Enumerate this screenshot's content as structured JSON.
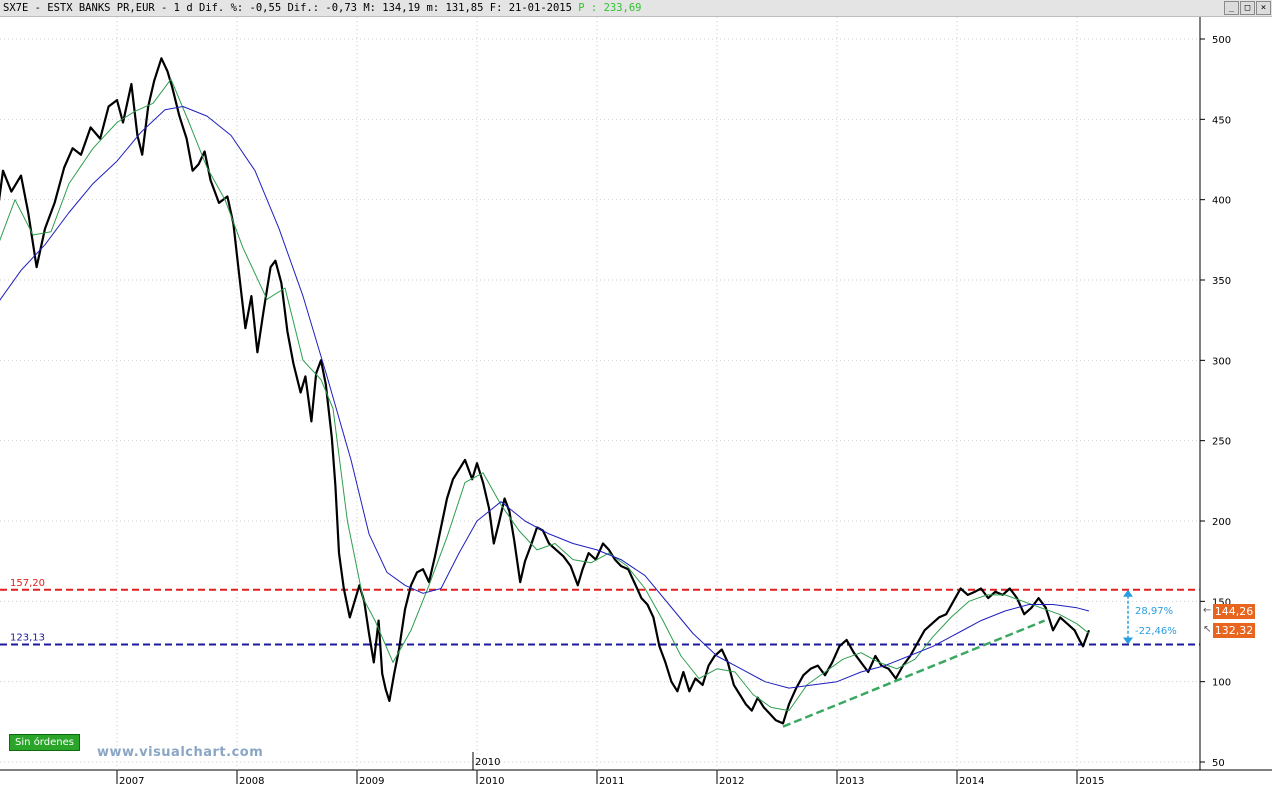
{
  "header": {
    "text": "SX7E - ESTX BANKS PR,EUR -  1 d Dif. %: -0,55 Dif.: -0,73 M: 134,19 m: 131,85 F: 21-01-2015",
    "p_label": "P : 233,69",
    "min_button": "_",
    "max_button": "□",
    "close_button": "×"
  },
  "badge": {
    "label": "Sin órdenes"
  },
  "watermark": "www.visualchart.com",
  "price_tags": {
    "upper": "144,26",
    "lower": "132,32"
  },
  "colors": {
    "price": "#000000",
    "ma_short": "#2e9e4e",
    "ma_long": "#1f1fbf",
    "resistance": "#e02020",
    "support": "#1a1a9e",
    "trendline": "#3aa860",
    "measure": "#2a9de0",
    "tag": "#e8651f"
  },
  "chart_data": {
    "type": "line",
    "yaxis": {
      "ticks": [
        50,
        100,
        150,
        200,
        250,
        300,
        350,
        400,
        450,
        500
      ],
      "ylim": [
        45,
        512
      ]
    },
    "xaxis": {
      "ticks": [
        "2007",
        "2008",
        "2009",
        "2010",
        "2011",
        "2012",
        "2013",
        "2014",
        "2015"
      ],
      "extra_label": "2010",
      "xlim": [
        2006.0,
        2015.9
      ]
    },
    "hlines": [
      {
        "name": "resistance",
        "value": 157.2,
        "label": "157,20"
      },
      {
        "name": "support",
        "value": 123.13,
        "label": "123,13"
      }
    ],
    "trendline": {
      "points": [
        [
          2012.55,
          72
        ],
        [
          2014.73,
          138
        ]
      ]
    },
    "measure": {
      "x": 2015.35,
      "from": 123.13,
      "to": 157.2,
      "labels": [
        "28,97%",
        "-22,46%"
      ]
    },
    "series": [
      {
        "name": "price",
        "points": [
          [
            2006.0,
            390
          ],
          [
            2006.05,
            418
          ],
          [
            2006.12,
            405
          ],
          [
            2006.2,
            415
          ],
          [
            2006.26,
            392
          ],
          [
            2006.33,
            358
          ],
          [
            2006.4,
            382
          ],
          [
            2006.48,
            398
          ],
          [
            2006.56,
            420
          ],
          [
            2006.63,
            432
          ],
          [
            2006.7,
            428
          ],
          [
            2006.78,
            445
          ],
          [
            2006.86,
            438
          ],
          [
            2006.93,
            458
          ],
          [
            2007.0,
            462
          ],
          [
            2007.05,
            448
          ],
          [
            2007.12,
            472
          ],
          [
            2007.17,
            440
          ],
          [
            2007.21,
            428
          ],
          [
            2007.26,
            458
          ],
          [
            2007.31,
            474
          ],
          [
            2007.37,
            488
          ],
          [
            2007.42,
            480
          ],
          [
            2007.46,
            470
          ],
          [
            2007.52,
            452
          ],
          [
            2007.58,
            438
          ],
          [
            2007.63,
            418
          ],
          [
            2007.68,
            422
          ],
          [
            2007.73,
            430
          ],
          [
            2007.78,
            412
          ],
          [
            2007.85,
            398
          ],
          [
            2007.92,
            402
          ],
          [
            2007.97,
            385
          ],
          [
            2008.02,
            352
          ],
          [
            2008.07,
            320
          ],
          [
            2008.12,
            340
          ],
          [
            2008.17,
            305
          ],
          [
            2008.22,
            330
          ],
          [
            2008.28,
            358
          ],
          [
            2008.32,
            362
          ],
          [
            2008.37,
            348
          ],
          [
            2008.42,
            318
          ],
          [
            2008.47,
            298
          ],
          [
            2008.53,
            280
          ],
          [
            2008.57,
            290
          ],
          [
            2008.62,
            262
          ],
          [
            2008.66,
            292
          ],
          [
            2008.7,
            300
          ],
          [
            2008.74,
            285
          ],
          [
            2008.79,
            252
          ],
          [
            2008.82,
            222
          ],
          [
            2008.85,
            180
          ],
          [
            2008.89,
            158
          ],
          [
            2008.94,
            140
          ],
          [
            2008.98,
            150
          ],
          [
            2009.02,
            160
          ],
          [
            2009.06,
            150
          ],
          [
            2009.1,
            130
          ],
          [
            2009.14,
            112
          ],
          [
            2009.18,
            138
          ],
          [
            2009.21,
            105
          ],
          [
            2009.24,
            95
          ],
          [
            2009.27,
            88
          ],
          [
            2009.31,
            105
          ],
          [
            2009.35,
            120
          ],
          [
            2009.4,
            145
          ],
          [
            2009.45,
            160
          ],
          [
            2009.5,
            168
          ],
          [
            2009.55,
            170
          ],
          [
            2009.6,
            162
          ],
          [
            2009.65,
            178
          ],
          [
            2009.7,
            196
          ],
          [
            2009.75,
            214
          ],
          [
            2009.8,
            226
          ],
          [
            2009.85,
            232
          ],
          [
            2009.9,
            238
          ],
          [
            2009.96,
            226
          ],
          [
            2010.0,
            236
          ],
          [
            2010.05,
            224
          ],
          [
            2010.1,
            208
          ],
          [
            2010.14,
            186
          ],
          [
            2010.18,
            198
          ],
          [
            2010.23,
            214
          ],
          [
            2010.27,
            206
          ],
          [
            2010.31,
            188
          ],
          [
            2010.36,
            162
          ],
          [
            2010.4,
            175
          ],
          [
            2010.45,
            185
          ],
          [
            2010.5,
            196
          ],
          [
            2010.55,
            194
          ],
          [
            2010.6,
            186
          ],
          [
            2010.66,
            182
          ],
          [
            2010.72,
            178
          ],
          [
            2010.78,
            172
          ],
          [
            2010.84,
            160
          ],
          [
            2010.88,
            170
          ],
          [
            2010.93,
            180
          ],
          [
            2010.99,
            176
          ],
          [
            2011.05,
            186
          ],
          [
            2011.1,
            182
          ],
          [
            2011.15,
            176
          ],
          [
            2011.2,
            172
          ],
          [
            2011.26,
            170
          ],
          [
            2011.31,
            162
          ],
          [
            2011.37,
            152
          ],
          [
            2011.42,
            148
          ],
          [
            2011.47,
            140
          ],
          [
            2011.52,
            122
          ],
          [
            2011.57,
            112
          ],
          [
            2011.62,
            100
          ],
          [
            2011.67,
            94
          ],
          [
            2011.72,
            106
          ],
          [
            2011.77,
            94
          ],
          [
            2011.82,
            102
          ],
          [
            2011.88,
            98
          ],
          [
            2011.93,
            110
          ],
          [
            2011.98,
            116
          ],
          [
            2012.04,
            120
          ],
          [
            2012.09,
            112
          ],
          [
            2012.14,
            98
          ],
          [
            2012.19,
            92
          ],
          [
            2012.24,
            86
          ],
          [
            2012.29,
            82
          ],
          [
            2012.34,
            90
          ],
          [
            2012.39,
            84
          ],
          [
            2012.44,
            80
          ],
          [
            2012.49,
            76
          ],
          [
            2012.55,
            74
          ],
          [
            2012.6,
            86
          ],
          [
            2012.66,
            96
          ],
          [
            2012.72,
            104
          ],
          [
            2012.78,
            108
          ],
          [
            2012.84,
            110
          ],
          [
            2012.9,
            104
          ],
          [
            2012.96,
            112
          ],
          [
            2013.02,
            122
          ],
          [
            2013.08,
            126
          ],
          [
            2013.14,
            118
          ],
          [
            2013.2,
            112
          ],
          [
            2013.26,
            106
          ],
          [
            2013.32,
            116
          ],
          [
            2013.37,
            110
          ],
          [
            2013.43,
            108
          ],
          [
            2013.49,
            102
          ],
          [
            2013.55,
            110
          ],
          [
            2013.61,
            116
          ],
          [
            2013.67,
            124
          ],
          [
            2013.73,
            132
          ],
          [
            2013.79,
            136
          ],
          [
            2013.85,
            140
          ],
          [
            2013.91,
            142
          ],
          [
            2013.97,
            150
          ],
          [
            2014.03,
            158
          ],
          [
            2014.09,
            154
          ],
          [
            2014.15,
            156
          ],
          [
            2014.2,
            158
          ],
          [
            2014.26,
            152
          ],
          [
            2014.32,
            156
          ],
          [
            2014.38,
            154
          ],
          [
            2014.44,
            158
          ],
          [
            2014.5,
            152
          ],
          [
            2014.56,
            142
          ],
          [
            2014.62,
            146
          ],
          [
            2014.68,
            152
          ],
          [
            2014.74,
            146
          ],
          [
            2014.8,
            132
          ],
          [
            2014.86,
            140
          ],
          [
            2014.92,
            136
          ],
          [
            2014.98,
            132
          ],
          [
            2015.02,
            126
          ],
          [
            2015.05,
            122
          ],
          [
            2015.08,
            128
          ],
          [
            2015.1,
            132
          ]
        ]
      },
      {
        "name": "ma_short",
        "points": [
          [
            2006.0,
            370
          ],
          [
            2006.15,
            400
          ],
          [
            2006.3,
            378
          ],
          [
            2006.45,
            380
          ],
          [
            2006.6,
            410
          ],
          [
            2006.8,
            432
          ],
          [
            2007.0,
            448
          ],
          [
            2007.15,
            455
          ],
          [
            2007.3,
            460
          ],
          [
            2007.45,
            475
          ],
          [
            2007.6,
            448
          ],
          [
            2007.75,
            420
          ],
          [
            2007.9,
            400
          ],
          [
            2008.05,
            370
          ],
          [
            2008.25,
            338
          ],
          [
            2008.4,
            345
          ],
          [
            2008.55,
            300
          ],
          [
            2008.7,
            288
          ],
          [
            2008.8,
            270
          ],
          [
            2008.92,
            200
          ],
          [
            2009.05,
            152
          ],
          [
            2009.15,
            138
          ],
          [
            2009.3,
            112
          ],
          [
            2009.45,
            132
          ],
          [
            2009.6,
            160
          ],
          [
            2009.75,
            190
          ],
          [
            2009.9,
            224
          ],
          [
            2010.05,
            230
          ],
          [
            2010.2,
            210
          ],
          [
            2010.35,
            194
          ],
          [
            2010.5,
            182
          ],
          [
            2010.65,
            186
          ],
          [
            2010.8,
            176
          ],
          [
            2010.95,
            174
          ],
          [
            2011.1,
            180
          ],
          [
            2011.25,
            172
          ],
          [
            2011.4,
            158
          ],
          [
            2011.55,
            138
          ],
          [
            2011.7,
            116
          ],
          [
            2011.85,
            102
          ],
          [
            2012.0,
            108
          ],
          [
            2012.15,
            106
          ],
          [
            2012.3,
            92
          ],
          [
            2012.45,
            84
          ],
          [
            2012.6,
            82
          ],
          [
            2012.75,
            98
          ],
          [
            2012.9,
            106
          ],
          [
            2013.05,
            114
          ],
          [
            2013.2,
            118
          ],
          [
            2013.35,
            112
          ],
          [
            2013.5,
            108
          ],
          [
            2013.65,
            114
          ],
          [
            2013.8,
            128
          ],
          [
            2013.95,
            140
          ],
          [
            2014.1,
            150
          ],
          [
            2014.25,
            154
          ],
          [
            2014.4,
            154
          ],
          [
            2014.55,
            150
          ],
          [
            2014.7,
            146
          ],
          [
            2014.85,
            142
          ],
          [
            2015.0,
            136
          ],
          [
            2015.1,
            130
          ]
        ]
      },
      {
        "name": "ma_long",
        "points": [
          [
            2006.0,
            335
          ],
          [
            2006.2,
            356
          ],
          [
            2006.4,
            372
          ],
          [
            2006.6,
            392
          ],
          [
            2006.8,
            410
          ],
          [
            2007.0,
            424
          ],
          [
            2007.2,
            442
          ],
          [
            2007.4,
            456
          ],
          [
            2007.55,
            458
          ],
          [
            2007.75,
            452
          ],
          [
            2007.95,
            440
          ],
          [
            2008.15,
            418
          ],
          [
            2008.35,
            382
          ],
          [
            2008.55,
            340
          ],
          [
            2008.75,
            290
          ],
          [
            2008.95,
            238
          ],
          [
            2009.1,
            192
          ],
          [
            2009.25,
            168
          ],
          [
            2009.4,
            160
          ],
          [
            2009.55,
            155
          ],
          [
            2009.7,
            158
          ],
          [
            2009.85,
            180
          ],
          [
            2010.0,
            200
          ],
          [
            2010.2,
            212
          ],
          [
            2010.4,
            200
          ],
          [
            2010.6,
            192
          ],
          [
            2010.8,
            186
          ],
          [
            2011.0,
            182
          ],
          [
            2011.2,
            176
          ],
          [
            2011.4,
            166
          ],
          [
            2011.6,
            148
          ],
          [
            2011.8,
            130
          ],
          [
            2012.0,
            116
          ],
          [
            2012.2,
            108
          ],
          [
            2012.4,
            100
          ],
          [
            2012.6,
            96
          ],
          [
            2012.8,
            98
          ],
          [
            2013.0,
            100
          ],
          [
            2013.2,
            106
          ],
          [
            2013.4,
            110
          ],
          [
            2013.6,
            116
          ],
          [
            2013.8,
            122
          ],
          [
            2014.0,
            130
          ],
          [
            2014.2,
            138
          ],
          [
            2014.4,
            144
          ],
          [
            2014.6,
            148
          ],
          [
            2014.8,
            148
          ],
          [
            2015.0,
            146
          ],
          [
            2015.1,
            144
          ]
        ]
      }
    ]
  }
}
